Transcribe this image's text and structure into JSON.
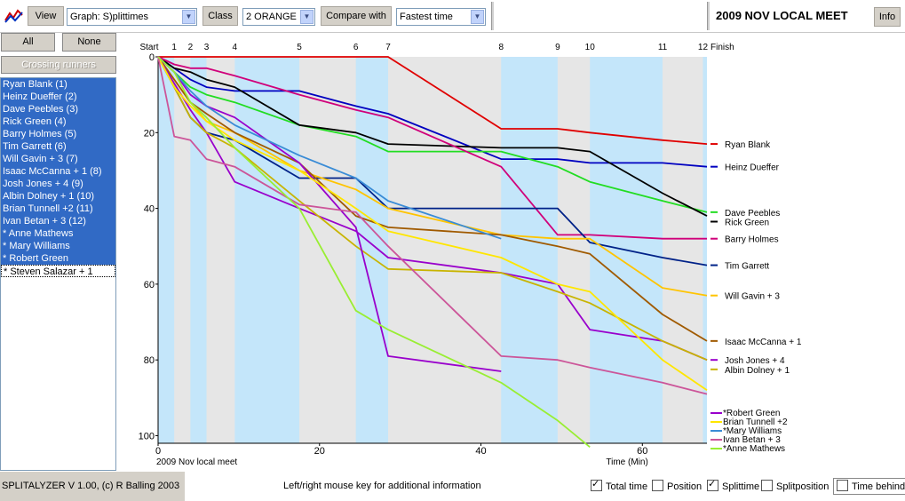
{
  "toolbar": {
    "view_label": "View",
    "view_value": "Graph: S)plittimes",
    "class_label": "Class",
    "class_value": "2 ORANGE",
    "compare_label": "Compare with",
    "compare_value": "Fastest time",
    "title": "2009 NOV LOCAL MEET",
    "info_label": "Info"
  },
  "sidebar": {
    "all_label": "All",
    "none_label": "None",
    "crossing_label": "Crossing runners",
    "runners": [
      {
        "label": "Ryan Blank  (1)",
        "selected": true
      },
      {
        "label": "Heinz Dueffer  (2)",
        "selected": true
      },
      {
        "label": "Dave Peebles  (3)",
        "selected": true
      },
      {
        "label": "Rick Green  (4)",
        "selected": true
      },
      {
        "label": "Barry Holmes  (5)",
        "selected": true
      },
      {
        "label": "Tim Garrett  (6)",
        "selected": true
      },
      {
        "label": "Will Gavin + 3  (7)",
        "selected": true
      },
      {
        "label": "Isaac McCanna + 1  (8)",
        "selected": true
      },
      {
        "label": "Josh Jones + 4  (9)",
        "selected": true
      },
      {
        "label": "Albin Dolney + 1  (10)",
        "selected": true
      },
      {
        "label": "Brian Tunnell +2  (11)",
        "selected": true
      },
      {
        "label": "Ivan Betan + 3  (12)",
        "selected": true
      },
      {
        "label": "* Anne Mathews",
        "selected": true
      },
      {
        "label": "* Mary Williams",
        "selected": true
      },
      {
        "label": "* Robert Green",
        "selected": true
      },
      {
        "label": "* Steven Salazar + 1",
        "selected": false
      }
    ]
  },
  "status": {
    "version": "SPLITALYZER V 1.00, (c) R Balling 2003",
    "hint": "Left/right mouse key for additional information",
    "checks": [
      {
        "label": "Total time",
        "on": true
      },
      {
        "label": "Position",
        "on": false
      },
      {
        "label": "Splittime",
        "on": true
      },
      {
        "label": "Splitposition",
        "on": false
      },
      {
        "label": "Time behind",
        "on": false
      }
    ]
  },
  "chart_data": {
    "type": "line",
    "footer_left": "2009 Nov local meet",
    "xlabel": "Time (Min)",
    "xlim": [
      0,
      68
    ],
    "ylim": [
      0,
      102
    ],
    "yaxis_inverted": true,
    "x_ticks": [
      0,
      20,
      40,
      60
    ],
    "y_ticks": [
      0,
      20,
      40,
      60,
      80,
      100
    ],
    "controls": [
      {
        "label": "Start",
        "x": 0
      },
      {
        "label": "1",
        "x": 2
      },
      {
        "label": "2",
        "x": 4
      },
      {
        "label": "3",
        "x": 6
      },
      {
        "label": "4",
        "x": 9.5
      },
      {
        "label": "5",
        "x": 17.5
      },
      {
        "label": "6",
        "x": 24.5
      },
      {
        "label": "7",
        "x": 28.5
      },
      {
        "label": "8",
        "x": 42.5
      },
      {
        "label": "9",
        "x": 49.5
      },
      {
        "label": "10",
        "x": 53.5
      },
      {
        "label": "11",
        "x": 62.5
      },
      {
        "label": "12",
        "x": 67.5
      },
      {
        "label": "Finish",
        "x": 68
      }
    ],
    "bands": [
      [
        0,
        2
      ],
      [
        4,
        6
      ],
      [
        9.5,
        17.5
      ],
      [
        24.5,
        28.5
      ],
      [
        42.5,
        49.5
      ],
      [
        53.5,
        62.5
      ],
      [
        67.5,
        68
      ]
    ],
    "series": [
      {
        "name": "Ryan Blank",
        "color": "#e00000",
        "x": [
          0,
          2,
          4,
          6,
          9.5,
          17.5,
          24.5,
          28.5,
          42.5,
          49.5,
          53.5,
          62.5,
          68
        ],
        "y": [
          0,
          0,
          0,
          0,
          0,
          0,
          0,
          0,
          19,
          19,
          20,
          22,
          23
        ]
      },
      {
        "name": "Heinz Dueffer",
        "color": "#0000c0",
        "x": [
          0,
          2,
          4,
          6,
          9.5,
          17.5,
          24.5,
          28.5,
          42.5,
          49.5,
          53.5,
          62.5,
          68
        ],
        "y": [
          0,
          3,
          6,
          8,
          9,
          9,
          13,
          15,
          27,
          27,
          28,
          28,
          29
        ]
      },
      {
        "name": "Dave Peebles",
        "color": "#22dd22",
        "x": [
          0,
          2,
          4,
          6,
          9.5,
          17.5,
          24.5,
          28.5,
          42.5,
          49.5,
          53.5,
          62.5,
          68
        ],
        "y": [
          0,
          4,
          8,
          10,
          12,
          18,
          21,
          25,
          25,
          29,
          33,
          38,
          41
        ]
      },
      {
        "name": "Rick Green",
        "color": "#000000",
        "x": [
          0,
          2,
          4,
          6,
          9.5,
          17.5,
          24.5,
          28.5,
          42.5,
          49.5,
          53.5,
          62.5,
          68
        ],
        "y": [
          0,
          3,
          4,
          6,
          8,
          18,
          20,
          23,
          24,
          24,
          25,
          36,
          42
        ]
      },
      {
        "name": "Barry Holmes",
        "color": "#d0007a",
        "x": [
          0,
          2,
          4,
          6,
          9.5,
          17.5,
          24.5,
          28.5,
          42.5,
          49.5,
          53.5,
          62.5,
          68
        ],
        "y": [
          0,
          2,
          3,
          3,
          5,
          10,
          14,
          16,
          29,
          47,
          47,
          48,
          48
        ]
      },
      {
        "name": "Tim Garrett",
        "color": "#002288",
        "x": [
          0,
          2,
          4,
          6,
          9.5,
          17.5,
          24.5,
          28.5,
          42.5,
          49.5,
          53.5,
          62.5,
          68
        ],
        "y": [
          0,
          8,
          16,
          20,
          22,
          32,
          32,
          40,
          40,
          40,
          49,
          53,
          55
        ]
      },
      {
        "name": "Will Gavin + 3",
        "color": "#ffc400",
        "x": [
          0,
          2,
          4,
          6,
          9.5,
          17.5,
          24.5,
          28.5,
          42.5,
          49.5,
          53.5,
          62.5,
          68
        ],
        "y": [
          0,
          6,
          12,
          17,
          20,
          30,
          35,
          40,
          47,
          48,
          48,
          61,
          63
        ]
      },
      {
        "name": "Isaac McCanna + 1",
        "color": "#a05a00",
        "x": [
          0,
          2,
          4,
          6,
          9.5,
          17.5,
          24.5,
          28.5,
          42.5,
          49.5,
          53.5,
          62.5,
          68
        ],
        "y": [
          0,
          6,
          12,
          15,
          20,
          28,
          42,
          45,
          47,
          50,
          52,
          68,
          75
        ]
      },
      {
        "name": "Josh Jones + 4",
        "color": "#9900cc",
        "x": [
          0,
          2,
          4,
          6,
          9.5,
          17.5,
          24.5,
          28.5,
          42.5,
          49.5,
          53.5,
          62.5,
          68
        ],
        "y": [
          0,
          7,
          14,
          20,
          33,
          40,
          46,
          53,
          57,
          60,
          72,
          75,
          80
        ]
      },
      {
        "name": "Albin Dolney + 1",
        "color": "#c8b400",
        "x": [
          0,
          2,
          4,
          6,
          9.5,
          17.5,
          24.5,
          28.5,
          42.5,
          49.5,
          53.5,
          62.5,
          68
        ],
        "y": [
          0,
          8,
          16,
          20,
          24,
          38,
          50,
          56,
          57,
          62,
          65,
          75,
          80
        ]
      },
      {
        "name": "Robert Green",
        "color": "#9900cc",
        "x": [
          0,
          2,
          4,
          6,
          9.5,
          17.5,
          24.5,
          28.5,
          42.5
        ],
        "y": [
          0,
          4,
          10,
          13,
          16,
          28,
          45,
          79,
          83
        ]
      },
      {
        "name": "Brian Tunnell +2",
        "color": "#ffe600",
        "x": [
          0,
          2,
          4,
          6,
          9.5,
          17.5,
          24.5,
          28.5,
          42.5,
          49.5,
          53.5,
          62.5,
          68
        ],
        "y": [
          0,
          8,
          13,
          17,
          22,
          30,
          40,
          46,
          53,
          60,
          62,
          80,
          88
        ]
      },
      {
        "name": "Mary Williams",
        "color": "#3a8cd6",
        "x": [
          0,
          2,
          4,
          6,
          9.5,
          17.5,
          24.5,
          28.5,
          42.5
        ],
        "y": [
          0,
          4,
          9,
          13,
          18,
          26,
          32,
          38,
          48
        ]
      },
      {
        "name": "Ivan Betan + 3",
        "color": "#cc5599",
        "x": [
          0,
          2,
          4,
          6,
          9.5,
          17.5,
          24.5,
          28.5,
          42.5,
          49.5,
          53.5,
          62.5,
          68
        ],
        "y": [
          0,
          21,
          22,
          27,
          29,
          39,
          41,
          50,
          79,
          80,
          82,
          86,
          89
        ]
      },
      {
        "name": "Anne Mathews",
        "color": "#99ee33",
        "x": [
          0,
          2,
          4,
          6,
          9.5,
          17.5,
          24.5,
          28.5,
          42.5,
          49.5,
          53.5
        ],
        "y": [
          0,
          4,
          12,
          16,
          24,
          40,
          67,
          72,
          86,
          96,
          103
        ]
      }
    ],
    "end_labels": [
      {
        "text": "Ryan Blank",
        "y": 23,
        "color": "#e00000"
      },
      {
        "text": "Heinz Dueffer",
        "y": 29,
        "color": "#0000c0"
      },
      {
        "text": "Dave Peebles",
        "y": 41,
        "color": "#22dd22"
      },
      {
        "text": "Rick Green",
        "y": 43.5,
        "color": "#000000"
      },
      {
        "text": "Barry Holmes",
        "y": 48,
        "color": "#d0007a"
      },
      {
        "text": "Tim Garrett",
        "y": 55,
        "color": "#002288"
      },
      {
        "text": "Will Gavin + 3",
        "y": 63,
        "color": "#ffc400"
      },
      {
        "text": "Isaac McCanna + 1",
        "y": 75,
        "color": "#a05a00"
      },
      {
        "text": "Josh Jones + 4",
        "y": 80,
        "color": "#9900cc"
      },
      {
        "text": "Albin Dolney + 1",
        "y": 82.5,
        "color": "#c8b400"
      }
    ],
    "legend_extra": [
      {
        "text": "*Robert Green",
        "color": "#9900cc"
      },
      {
        "text": "Brian Tunnell +2",
        "color": "#ffe600"
      },
      {
        "text": "*Mary Williams",
        "color": "#3a8cd6"
      },
      {
        "text": "Ivan Betan + 3",
        "color": "#cc5599"
      },
      {
        "text": "*Anne Mathews",
        "color": "#99ee33"
      }
    ]
  }
}
